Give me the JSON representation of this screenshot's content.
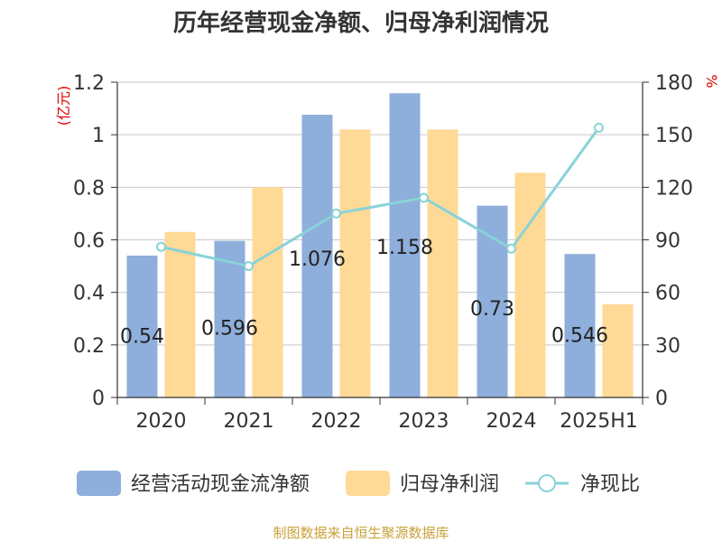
{
  "chart_data": {
    "type": "bar",
    "title": "历年经营现金净额、归母净利润情况",
    "categories": [
      "2020",
      "2021",
      "2022",
      "2023",
      "2024",
      "2025H1"
    ],
    "y_left": {
      "unit": "(亿元)",
      "ylim": [
        0,
        1.2
      ],
      "ticks": [
        "0",
        "0.2",
        "0.4",
        "0.6",
        "0.8",
        "1",
        "1.2"
      ]
    },
    "y_right": {
      "unit": "%",
      "ylim": [
        0,
        180
      ],
      "ticks": [
        "0",
        "30",
        "60",
        "90",
        "120",
        "150",
        "180"
      ]
    },
    "series": [
      {
        "name": "经营活动现金流净额",
        "kind": "bar",
        "axis": "left",
        "color": "#8eaedb",
        "values": [
          0.54,
          0.596,
          1.076,
          1.158,
          0.73,
          0.546
        ],
        "labels": [
          "0.54",
          "0.596",
          "1.076",
          "1.158",
          "0.73",
          "0.546"
        ]
      },
      {
        "name": "归母净利润",
        "kind": "bar",
        "axis": "left",
        "color": "#ffd996",
        "values": [
          0.63,
          0.8,
          1.02,
          1.02,
          0.855,
          0.355
        ]
      },
      {
        "name": "净现比",
        "kind": "line",
        "axis": "right",
        "color": "#88d3d8",
        "values": [
          86,
          75,
          105,
          114,
          85,
          154
        ]
      }
    ],
    "grid": true,
    "legend_position": "bottom"
  },
  "source": "制图数据来自恒生聚源数据库"
}
